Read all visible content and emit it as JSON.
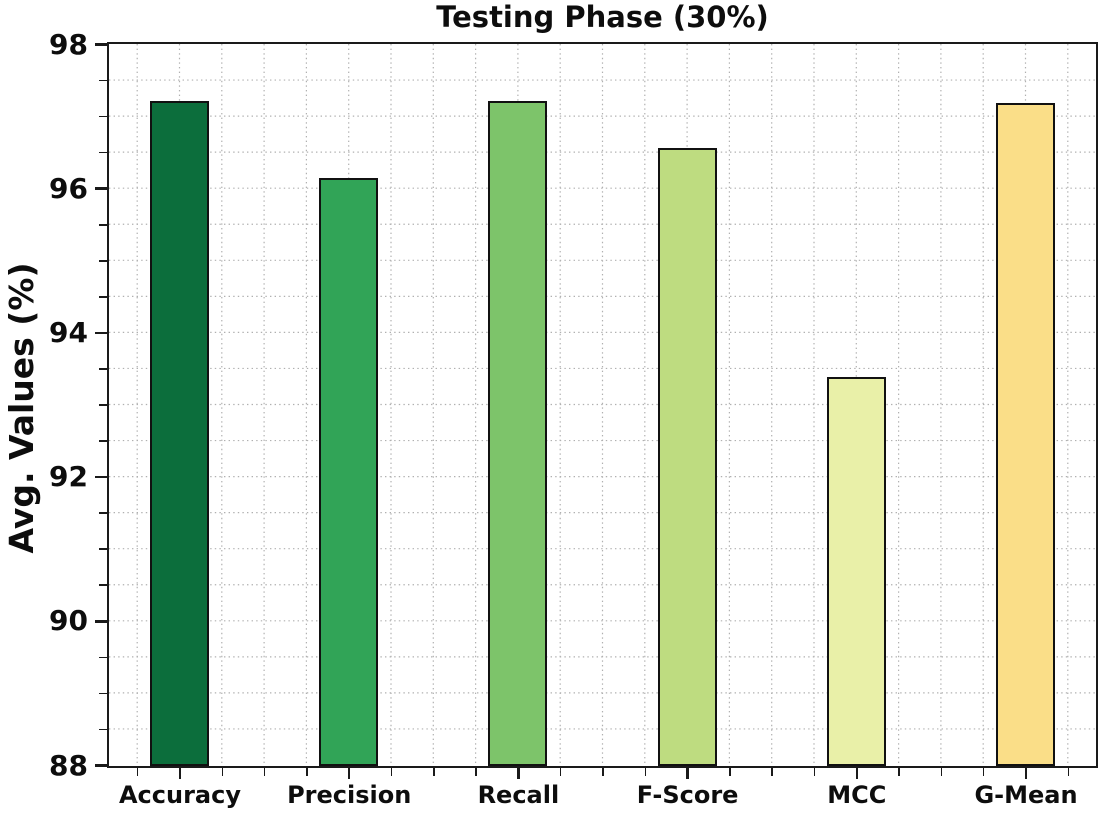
{
  "chart_data": {
    "type": "bar",
    "title": "Testing Phase (30%)",
    "xlabel": "",
    "ylabel": "Avg. Values (%)",
    "categories": [
      "Accuracy",
      "Precision",
      "Recall",
      "F-Score",
      "MCC",
      "G-Mean"
    ],
    "values": [
      97.22,
      96.15,
      97.22,
      96.57,
      93.39,
      97.2
    ],
    "bar_colors": [
      "#0c6e3c",
      "#31a457",
      "#7dc46a",
      "#bedc80",
      "#e9f0a8",
      "#fade88"
    ],
    "bar_edge_color": "#111111",
    "ylim": [
      88,
      98
    ],
    "yticks": [
      88,
      90,
      92,
      94,
      96,
      98
    ],
    "minor_tick_step": 0.5,
    "grid": "dotted",
    "grid_color": "#b0b0b0",
    "legend": "none",
    "background": "#ffffff"
  }
}
